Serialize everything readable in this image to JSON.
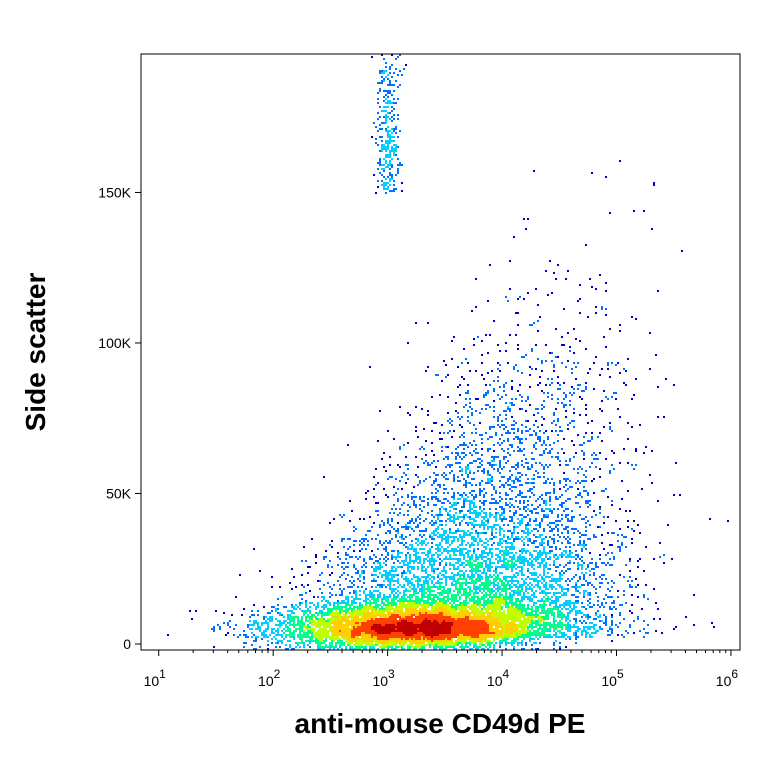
{
  "chart_data": {
    "type": "scatter",
    "subtype": "flow-cytometry-density-dot-plot",
    "title": "",
    "xlabel": "anti-mouse CD49d PE",
    "ylabel": "Side scatter",
    "x_scale": "log",
    "x_range": [
      7,
      1200000
    ],
    "y_range": [
      -2000,
      196000
    ],
    "x_ticks": [
      {
        "value": 10,
        "base": "10",
        "exp": "1"
      },
      {
        "value": 100,
        "base": "10",
        "exp": "2"
      },
      {
        "value": 1000,
        "base": "10",
        "exp": "3"
      },
      {
        "value": 10000,
        "base": "10",
        "exp": "4"
      },
      {
        "value": 100000,
        "base": "10",
        "exp": "5"
      },
      {
        "value": 1000000,
        "base": "10",
        "exp": "6"
      }
    ],
    "y_ticks": [
      {
        "value": 0,
        "label": "0"
      },
      {
        "value": 50000,
        "label": "50K"
      },
      {
        "value": 100000,
        "label": "100K"
      },
      {
        "value": 150000,
        "label": "150K"
      }
    ],
    "grid": false,
    "legend": "none",
    "colormap": [
      "#0000d0",
      "#0070ff",
      "#00d0ff",
      "#00ff90",
      "#c0ff00",
      "#ffd000",
      "#ff4000",
      "#c00000"
    ],
    "populations": [
      {
        "name_hidden": true,
        "center_x": 1400,
        "center_y": 5000,
        "log_sd_x": 0.55,
        "sd_y": 4000
      },
      {
        "name_hidden": true,
        "center_x": 5000,
        "center_y": 20000,
        "log_sd_x": 0.6,
        "sd_y": 15000
      },
      {
        "name_hidden": true,
        "center_x": 10000,
        "center_y": 70000,
        "log_sd_x": 0.55,
        "sd_y": 35000
      },
      {
        "name_hidden": true,
        "center_x": 1000,
        "center_y": 150000,
        "log_sd_x": 0.05,
        "sd_y": 35000
      }
    ]
  }
}
